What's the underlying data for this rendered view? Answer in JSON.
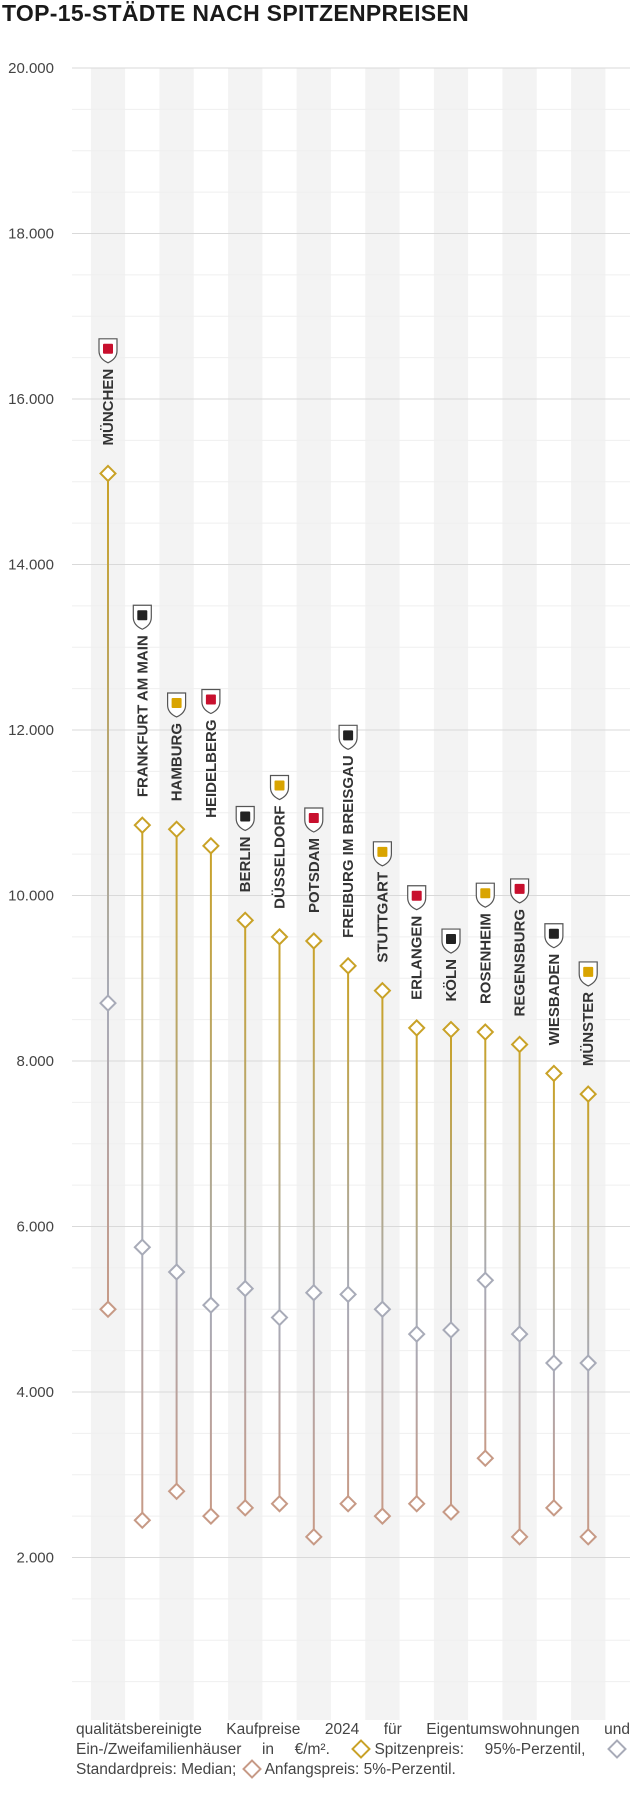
{
  "title": "TOP-15-STÄDTE NACH SPITZENPREISEN",
  "colors": {
    "spitzen": "#c9a227",
    "standard": "#a8abb8",
    "anfang": "#c79a86",
    "grid": "#d9d9d9",
    "band": "#f3f3f3"
  },
  "legend": {
    "note": "qualitätsbereinigte Kaufpreise 2024 für Eigentumswohnungen und Ein-/Zweifamilienhäuser in €/m².",
    "spitzen_label": "Spitzenpreis: 95%-Perzentil,",
    "standard_label": "Standardpreis: Median;",
    "anfang_label": "Anfangspreis: 5%-Perzentil."
  },
  "chart_data": {
    "type": "dot-range",
    "title": "TOP-15-STÄDTE NACH SPITZENPREISEN",
    "ylabel": "€/m²",
    "ylim": [
      0,
      20000
    ],
    "yticks": [
      {
        "value": 0,
        "label": "-"
      },
      {
        "value": 2000,
        "label": "2.000"
      },
      {
        "value": 4000,
        "label": "4.000"
      },
      {
        "value": 6000,
        "label": "6.000"
      },
      {
        "value": 8000,
        "label": "8.000"
      },
      {
        "value": 10000,
        "label": "10.000"
      },
      {
        "value": 12000,
        "label": "12.000"
      },
      {
        "value": 14000,
        "label": "14.000"
      },
      {
        "value": 16000,
        "label": "16.000"
      },
      {
        "value": 18000,
        "label": "18.000"
      },
      {
        "value": 20000,
        "label": "20.000"
      }
    ],
    "cities": [
      "MÜNCHEN",
      "FRANKFURT AM MAIN",
      "HAMBURG",
      "HEIDELBERG",
      "BERLIN",
      "DÜSSELDORF",
      "POTSDAM",
      "FREIBURG IM BREISGAU",
      "STUTTGART",
      "ERLANGEN",
      "KÖLN",
      "ROSENHEIM",
      "REGENSBURG",
      "WIESBADEN",
      "MÜNSTER"
    ],
    "series": [
      {
        "name": "Spitzenpreis: 95%-Perzentil",
        "values": [
          15100,
          10850,
          10800,
          10600,
          9700,
          9500,
          9450,
          9150,
          8850,
          8400,
          8380,
          8350,
          8200,
          7850,
          7600
        ]
      },
      {
        "name": "Standardpreis: Median",
        "values": [
          8700,
          5750,
          5450,
          5050,
          5250,
          4900,
          5200,
          5180,
          5000,
          4700,
          4750,
          5350,
          4700,
          4350,
          4350
        ]
      },
      {
        "name": "Anfangspreis: 5%-Perzentil",
        "values": [
          5000,
          2450,
          2800,
          2500,
          2600,
          2650,
          2250,
          2650,
          2500,
          2650,
          2550,
          3200,
          2250,
          2600,
          2250
        ]
      }
    ]
  }
}
